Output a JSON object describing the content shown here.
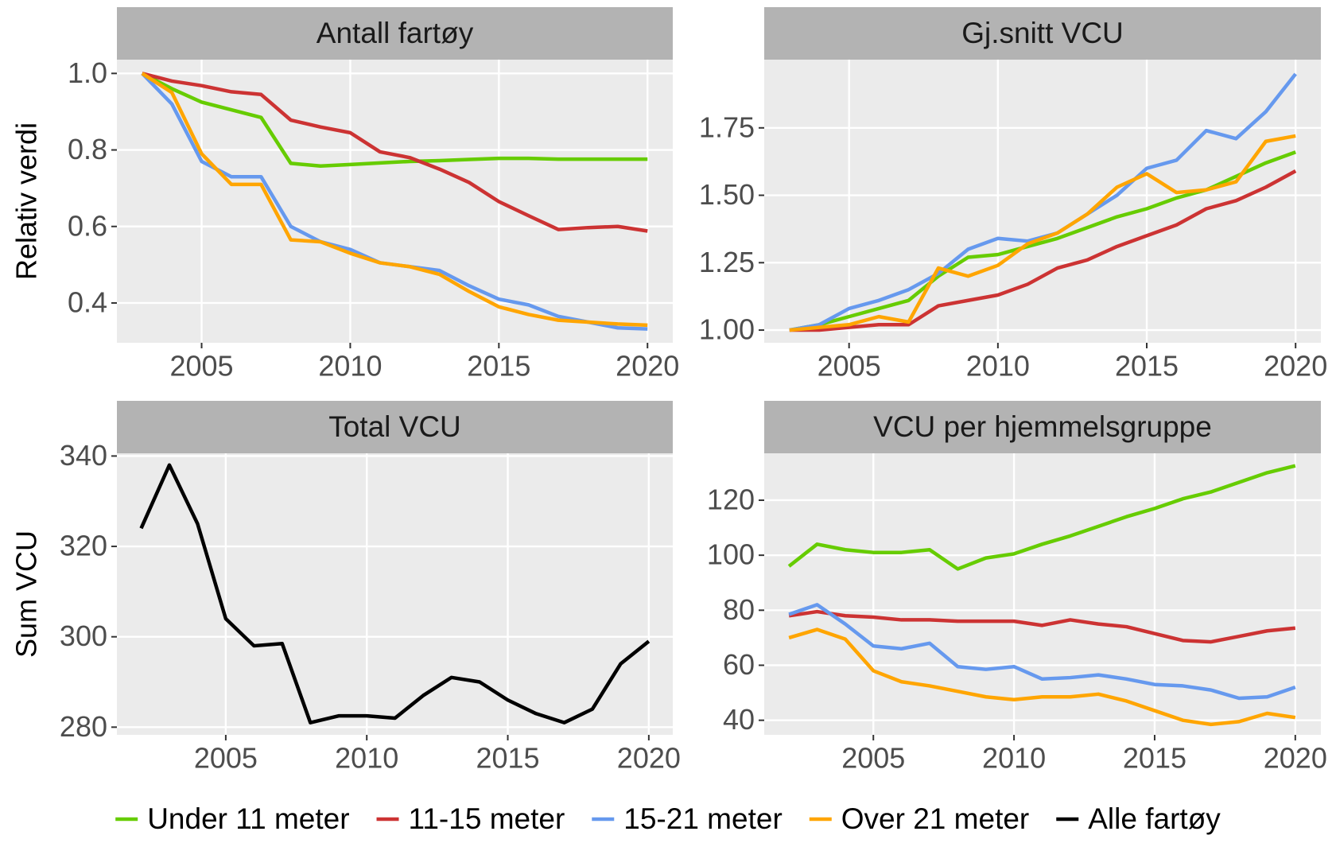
{
  "chart_data": [
    {
      "type": "line",
      "title": "Antall fartøy",
      "ylabel": "Relativ verdi",
      "x": [
        2003,
        2004,
        2005,
        2006,
        2007,
        2008,
        2009,
        2010,
        2011,
        2012,
        2013,
        2014,
        2015,
        2016,
        2017,
        2018,
        2019,
        2020
      ],
      "series": [
        {
          "name": "Under 11 meter",
          "color": "#66cc00",
          "values": [
            1.0,
            0.96,
            0.925,
            0.905,
            0.885,
            0.765,
            0.758,
            0.762,
            0.766,
            0.77,
            0.772,
            0.775,
            0.778,
            0.778,
            0.776,
            0.776,
            0.776,
            0.776
          ]
        },
        {
          "name": "11-15 meter",
          "color": "#cc3333",
          "values": [
            1.0,
            0.98,
            0.968,
            0.952,
            0.945,
            0.878,
            0.86,
            0.845,
            0.795,
            0.78,
            0.75,
            0.715,
            0.665,
            0.628,
            0.592,
            0.597,
            0.6,
            0.588
          ]
        },
        {
          "name": "15-21 meter",
          "color": "#6699ee",
          "values": [
            1.0,
            0.92,
            0.77,
            0.73,
            0.73,
            0.6,
            0.56,
            0.54,
            0.505,
            0.495,
            0.485,
            0.445,
            0.41,
            0.395,
            0.365,
            0.35,
            0.335,
            0.332
          ]
        },
        {
          "name": "Over 21 meter",
          "color": "#ffa500",
          "values": [
            1.0,
            0.95,
            0.79,
            0.71,
            0.71,
            0.565,
            0.56,
            0.53,
            0.505,
            0.495,
            0.475,
            0.43,
            0.39,
            0.37,
            0.355,
            0.35,
            0.345,
            0.342
          ]
        }
      ],
      "xlim": [
        2002.15,
        2020.85
      ],
      "ylim": [
        0.296,
        1.036
      ],
      "xticks": [
        2005,
        2010,
        2015,
        2020
      ],
      "yticks": [
        {
          "value": 1,
          "label": "1.0"
        },
        0.8,
        0.6,
        0.4
      ],
      "grid": true
    },
    {
      "type": "line",
      "title": "Gj.snitt VCU",
      "x": [
        2003,
        2004,
        2005,
        2006,
        2007,
        2008,
        2009,
        2010,
        2011,
        2012,
        2013,
        2014,
        2015,
        2016,
        2017,
        2018,
        2019,
        2020
      ],
      "series": [
        {
          "name": "Under 11 meter",
          "color": "#66cc00",
          "values": [
            1.0,
            1.02,
            1.05,
            1.08,
            1.11,
            1.2,
            1.27,
            1.28,
            1.31,
            1.34,
            1.38,
            1.42,
            1.45,
            1.49,
            1.52,
            1.57,
            1.62,
            1.66
          ]
        },
        {
          "name": "11-15 meter",
          "color": "#cc3333",
          "values": [
            1.0,
            1.0,
            1.01,
            1.02,
            1.02,
            1.09,
            1.11,
            1.13,
            1.17,
            1.23,
            1.26,
            1.31,
            1.35,
            1.39,
            1.45,
            1.48,
            1.53,
            1.59
          ]
        },
        {
          "name": "15-21 meter",
          "color": "#6699ee",
          "values": [
            1.0,
            1.02,
            1.08,
            1.11,
            1.15,
            1.21,
            1.3,
            1.34,
            1.33,
            1.36,
            1.43,
            1.5,
            1.6,
            1.63,
            1.74,
            1.71,
            1.81,
            1.95
          ]
        },
        {
          "name": "Over 21 meter",
          "color": "#ffa500",
          "values": [
            1.0,
            1.01,
            1.02,
            1.05,
            1.03,
            1.23,
            1.2,
            1.24,
            1.32,
            1.36,
            1.43,
            1.53,
            1.58,
            1.51,
            1.52,
            1.55,
            1.7,
            1.72
          ]
        }
      ],
      "xlim": [
        2002.15,
        2020.85
      ],
      "ylim": [
        0.953,
        2.003
      ],
      "xticks": [
        2005,
        2010,
        2015,
        2020
      ],
      "yticks": [
        {
          "value": 1,
          "label": "1.00"
        },
        1.25,
        {
          "value": 1.5,
          "label": "1.50"
        },
        1.75
      ],
      "grid": true
    },
    {
      "type": "line",
      "title": "Total VCU",
      "ylabel": "Sum VCU",
      "x": [
        2002,
        2003,
        2004,
        2005,
        2006,
        2007,
        2008,
        2009,
        2010,
        2011,
        2012,
        2013,
        2014,
        2015,
        2016,
        2017,
        2018,
        2019,
        2020
      ],
      "series": [
        {
          "name": "Alle fartøy",
          "color": "#000000",
          "values": [
            324,
            338,
            325,
            304,
            298,
            298.5,
            281,
            282.5,
            282.5,
            282,
            287,
            291,
            290,
            286,
            283,
            281,
            284,
            294,
            299
          ]
        }
      ],
      "xlim": [
        2001.14,
        2020.85
      ],
      "ylim": [
        278.3,
        340.6
      ],
      "xticks": [
        2005,
        2010,
        2015,
        2020
      ],
      "yticks": [
        280,
        300,
        320,
        340
      ],
      "grid": true
    },
    {
      "type": "line",
      "title": "VCU per hjemmelsgruppe",
      "x": [
        2002,
        2003,
        2004,
        2005,
        2006,
        2007,
        2008,
        2009,
        2010,
        2011,
        2012,
        2013,
        2014,
        2015,
        2016,
        2017,
        2018,
        2019,
        2020
      ],
      "series": [
        {
          "name": "Under 11 meter",
          "color": "#66cc00",
          "values": [
            96,
            104,
            102,
            101,
            101,
            102,
            95,
            99,
            100.5,
            104,
            107,
            110.5,
            114,
            117,
            120.5,
            123,
            126.5,
            130,
            132.5
          ]
        },
        {
          "name": "11-15 meter",
          "color": "#cc3333",
          "values": [
            78,
            79.5,
            78,
            77.5,
            76.5,
            76.5,
            76,
            76,
            76,
            74.5,
            76.5,
            75,
            74,
            71.5,
            69,
            68.5,
            70.5,
            72.5,
            73.5
          ]
        },
        {
          "name": "15-21 meter",
          "color": "#6699ee",
          "values": [
            78.5,
            82,
            75,
            67,
            66,
            68,
            59.5,
            58.5,
            59.5,
            55,
            55.5,
            56.5,
            55,
            53,
            52.5,
            51,
            48,
            48.5,
            52
          ]
        },
        {
          "name": "Over 21 meter",
          "color": "#ffa500",
          "values": [
            70,
            73,
            69.5,
            58,
            54,
            52.5,
            50.5,
            48.5,
            47.5,
            48.5,
            48.5,
            49.5,
            47,
            43.5,
            40,
            38.5,
            39.5,
            42.5,
            41
          ]
        }
      ],
      "xlim": [
        2001.12,
        2020.91
      ],
      "ylim": [
        34.7,
        137.05
      ],
      "xticks": [
        2005,
        2010,
        2015,
        2020
      ],
      "yticks": [
        40,
        60,
        80,
        100,
        120
      ],
      "grid": true
    }
  ]
}
